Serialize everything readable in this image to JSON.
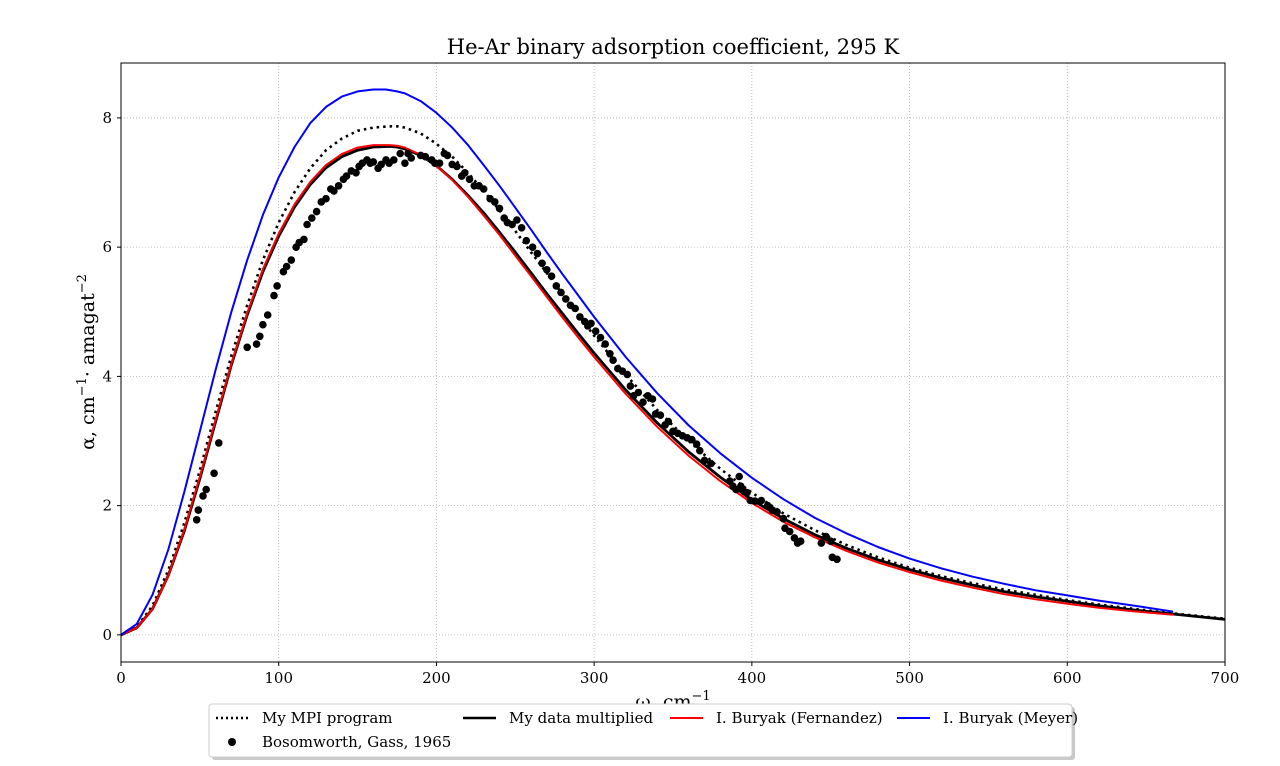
{
  "chart_data": {
    "type": "line",
    "title": "He-Ar binary adsorption coefficient, 295 K",
    "xlabel_main": "ω, cm",
    "xlabel_sup": "−1",
    "ylabel_main": "α, cm",
    "ylabel_sup1": "−1",
    "ylabel_mid": "· amagat",
    "ylabel_sup2": "−2",
    "xlim": [
      0,
      700
    ],
    "ylim": [
      -0.42,
      8.85
    ],
    "xticks": [
      0,
      100,
      200,
      300,
      400,
      500,
      600,
      700
    ],
    "yticks": [
      0,
      2,
      4,
      6,
      8
    ],
    "grid": true,
    "legend_position": "bottom-center",
    "series": [
      {
        "name": "My MPI program",
        "style": "dotted",
        "color": "#000000",
        "x": [
          0,
          10,
          20,
          30,
          40,
          50,
          60,
          70,
          80,
          90,
          100,
          110,
          120,
          130,
          140,
          150,
          160,
          170,
          175,
          180,
          190,
          200,
          210,
          220,
          230,
          240,
          250,
          260,
          270,
          280,
          290,
          300,
          320,
          340,
          360,
          380,
          400,
          420,
          440,
          460,
          480,
          500,
          520,
          540,
          560,
          580,
          600,
          620,
          640,
          660,
          680,
          700
        ],
        "y": [
          0,
          0.12,
          0.45,
          1.0,
          1.72,
          2.55,
          3.45,
          4.32,
          5.1,
          5.8,
          6.38,
          6.85,
          7.22,
          7.5,
          7.68,
          7.8,
          7.85,
          7.87,
          7.87,
          7.85,
          7.76,
          7.6,
          7.4,
          7.15,
          6.87,
          6.57,
          6.25,
          5.92,
          5.6,
          5.27,
          4.95,
          4.63,
          4.03,
          3.48,
          3.0,
          2.57,
          2.2,
          1.88,
          1.62,
          1.39,
          1.2,
          1.04,
          0.91,
          0.8,
          0.7,
          0.62,
          0.54,
          0.47,
          0.41,
          0.35,
          0.3,
          0.25
        ]
      },
      {
        "name": "My data multiplied",
        "style": "solid",
        "color": "#000000",
        "x": [
          0,
          10,
          20,
          30,
          40,
          50,
          60,
          70,
          80,
          90,
          100,
          110,
          120,
          130,
          140,
          150,
          160,
          170,
          175,
          180,
          190,
          200,
          210,
          220,
          230,
          240,
          250,
          260,
          270,
          280,
          290,
          300,
          320,
          340,
          360,
          380,
          400,
          420,
          440,
          460,
          480,
          500,
          520,
          540,
          560,
          580,
          600,
          620,
          640,
          660,
          680,
          700
        ],
        "y": [
          0,
          0.11,
          0.4,
          0.92,
          1.6,
          2.42,
          3.3,
          4.18,
          4.95,
          5.62,
          6.17,
          6.62,
          6.97,
          7.23,
          7.4,
          7.5,
          7.55,
          7.56,
          7.55,
          7.52,
          7.42,
          7.26,
          7.05,
          6.8,
          6.53,
          6.23,
          5.92,
          5.6,
          5.28,
          4.97,
          4.66,
          4.36,
          3.79,
          3.28,
          2.83,
          2.44,
          2.09,
          1.8,
          1.55,
          1.34,
          1.16,
          1.01,
          0.88,
          0.77,
          0.67,
          0.59,
          0.52,
          0.45,
          0.39,
          0.34,
          0.29,
          0.24
        ]
      },
      {
        "name": "I. Buryak (Fernandez)",
        "style": "solid",
        "color": "#ff0000",
        "x": [
          0,
          10,
          20,
          30,
          40,
          50,
          60,
          70,
          80,
          90,
          100,
          110,
          120,
          130,
          140,
          150,
          160,
          170,
          175,
          180,
          190,
          200,
          210,
          220,
          230,
          240,
          250,
          260,
          270,
          280,
          290,
          300,
          320,
          340,
          360,
          380,
          400,
          420,
          440,
          460,
          480,
          500,
          520,
          540,
          560,
          580,
          600,
          620,
          640,
          667
        ],
        "y": [
          0,
          0.11,
          0.4,
          0.92,
          1.62,
          2.45,
          3.33,
          4.2,
          4.98,
          5.66,
          6.21,
          6.66,
          7.01,
          7.27,
          7.44,
          7.54,
          7.58,
          7.58,
          7.57,
          7.54,
          7.43,
          7.26,
          7.04,
          6.78,
          6.49,
          6.19,
          5.87,
          5.55,
          5.23,
          4.91,
          4.6,
          4.3,
          3.73,
          3.22,
          2.77,
          2.38,
          2.04,
          1.75,
          1.51,
          1.3,
          1.12,
          0.97,
          0.84,
          0.73,
          0.63,
          0.55,
          0.48,
          0.42,
          0.37,
          0.31
        ]
      },
      {
        "name": "I. Buryak (Meyer)",
        "style": "solid",
        "color": "#0000ff",
        "x": [
          0,
          10,
          20,
          30,
          40,
          50,
          60,
          70,
          80,
          90,
          100,
          110,
          120,
          130,
          140,
          150,
          160,
          168,
          175,
          180,
          190,
          200,
          210,
          220,
          230,
          240,
          250,
          260,
          270,
          280,
          290,
          300,
          320,
          340,
          360,
          380,
          400,
          420,
          440,
          460,
          480,
          500,
          520,
          540,
          560,
          580,
          600,
          620,
          640,
          667
        ],
        "y": [
          0,
          0.17,
          0.62,
          1.32,
          2.2,
          3.15,
          4.1,
          5.0,
          5.8,
          6.5,
          7.08,
          7.55,
          7.92,
          8.17,
          8.33,
          8.41,
          8.44,
          8.44,
          8.41,
          8.38,
          8.26,
          8.08,
          7.85,
          7.58,
          7.27,
          6.95,
          6.61,
          6.27,
          5.92,
          5.58,
          5.25,
          4.92,
          4.3,
          3.74,
          3.24,
          2.81,
          2.43,
          2.1,
          1.81,
          1.57,
          1.36,
          1.18,
          1.03,
          0.9,
          0.79,
          0.69,
          0.61,
          0.53,
          0.46,
          0.36
        ]
      },
      {
        "name": "Bosomworth, Gass, 1965",
        "style": "markers",
        "color": "#000000",
        "points": [
          [
            48,
            1.78
          ],
          [
            49,
            1.93
          ],
          [
            52,
            2.15
          ],
          [
            54,
            2.25
          ],
          [
            59,
            2.5
          ],
          [
            62,
            2.97
          ],
          [
            80,
            4.45
          ],
          [
            86,
            4.5
          ],
          [
            88,
            4.62
          ],
          [
            90,
            4.8
          ],
          [
            93,
            4.95
          ],
          [
            97,
            5.25
          ],
          [
            99,
            5.4
          ],
          [
            103,
            5.62
          ],
          [
            105,
            5.7
          ],
          [
            108,
            5.8
          ],
          [
            111,
            6.0
          ],
          [
            113,
            6.07
          ],
          [
            116,
            6.12
          ],
          [
            118,
            6.35
          ],
          [
            121,
            6.45
          ],
          [
            124,
            6.55
          ],
          [
            127,
            6.7
          ],
          [
            130,
            6.75
          ],
          [
            133,
            6.9
          ],
          [
            135,
            6.87
          ],
          [
            138,
            6.95
          ],
          [
            141,
            7.05
          ],
          [
            143,
            7.1
          ],
          [
            146,
            7.18
          ],
          [
            149,
            7.15
          ],
          [
            151,
            7.25
          ],
          [
            153,
            7.3
          ],
          [
            156,
            7.35
          ],
          [
            158,
            7.3
          ],
          [
            160,
            7.32
          ],
          [
            163,
            7.22
          ],
          [
            165,
            7.28
          ],
          [
            168,
            7.35
          ],
          [
            170,
            7.3
          ],
          [
            173,
            7.35
          ],
          [
            177,
            7.45
          ],
          [
            180,
            7.3
          ],
          [
            182,
            7.45
          ],
          [
            184,
            7.38
          ],
          [
            190,
            7.42
          ],
          [
            193,
            7.4
          ],
          [
            197,
            7.35
          ],
          [
            199,
            7.3
          ],
          [
            202,
            7.3
          ],
          [
            205,
            7.45
          ],
          [
            207,
            7.42
          ],
          [
            210,
            7.28
          ],
          [
            213,
            7.25
          ],
          [
            216,
            7.1
          ],
          [
            218,
            7.15
          ],
          [
            221,
            7.05
          ],
          [
            224,
            6.95
          ],
          [
            227,
            6.95
          ],
          [
            230,
            6.9
          ],
          [
            234,
            6.75
          ],
          [
            237,
            6.7
          ],
          [
            240,
            6.6
          ],
          [
            243,
            6.45
          ],
          [
            245,
            6.38
          ],
          [
            248,
            6.35
          ],
          [
            251,
            6.42
          ],
          [
            254,
            6.3
          ],
          [
            257,
            6.1
          ],
          [
            261,
            6.0
          ],
          [
            264,
            5.9
          ],
          [
            267,
            5.75
          ],
          [
            270,
            5.65
          ],
          [
            273,
            5.55
          ],
          [
            276,
            5.4
          ],
          [
            279,
            5.3
          ],
          [
            282,
            5.2
          ],
          [
            285,
            5.1
          ],
          [
            288,
            5.05
          ],
          [
            291,
            4.92
          ],
          [
            294,
            4.85
          ],
          [
            296,
            4.78
          ],
          [
            298,
            4.82
          ],
          [
            301,
            4.7
          ],
          [
            304,
            4.6
          ],
          [
            307,
            4.5
          ],
          [
            310,
            4.35
          ],
          [
            312,
            4.25
          ],
          [
            315,
            4.12
          ],
          [
            318,
            4.08
          ],
          [
            321,
            4.03
          ],
          [
            323,
            3.85
          ],
          [
            325,
            3.7
          ],
          [
            328,
            3.75
          ],
          [
            331,
            3.6
          ],
          [
            334,
            3.7
          ],
          [
            337,
            3.65
          ],
          [
            339,
            3.42
          ],
          [
            342,
            3.4
          ],
          [
            345,
            3.25
          ],
          [
            347,
            3.3
          ],
          [
            350,
            3.15
          ],
          [
            353,
            3.12
          ],
          [
            356,
            3.08
          ],
          [
            359,
            3.05
          ],
          [
            362,
            3.02
          ],
          [
            365,
            2.95
          ],
          [
            367,
            2.85
          ],
          [
            370,
            2.7
          ],
          [
            374,
            2.65
          ],
          [
            386,
            2.38
          ],
          [
            388,
            2.3
          ],
          [
            390,
            2.25
          ],
          [
            392,
            2.45
          ],
          [
            393,
            2.3
          ],
          [
            395,
            2.22
          ],
          [
            397,
            2.2
          ],
          [
            399,
            2.08
          ],
          [
            402,
            2.07
          ],
          [
            406,
            2.08
          ],
          [
            410,
            2.0
          ],
          [
            413,
            1.93
          ],
          [
            416,
            1.9
          ],
          [
            420,
            1.8
          ],
          [
            421,
            1.65
          ],
          [
            424,
            1.6
          ],
          [
            427,
            1.5
          ],
          [
            429,
            1.42
          ],
          [
            431,
            1.45
          ],
          [
            444,
            1.42
          ],
          [
            447,
            1.52
          ],
          [
            450,
            1.45
          ],
          [
            451,
            1.2
          ],
          [
            454,
            1.17
          ]
        ]
      }
    ]
  }
}
